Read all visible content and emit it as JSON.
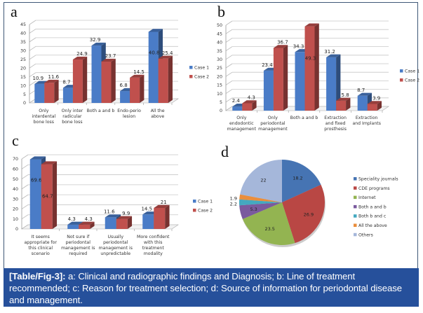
{
  "caption": {
    "label": "[Table/Fig-3]:",
    "text": " a: Clinical and radiographic findings and Diagnosis; b: Line of treatment recommended; c: Reason for treatment selection; d: Source of information for periodontal disease and management."
  },
  "colors": {
    "case1": "#4a7cc7",
    "case2": "#c0504d",
    "caption_bg": "#26509b",
    "frame": "#3f5877"
  },
  "chart_data": [
    {
      "panel": "a",
      "type": "bar",
      "title": "Clinical and radiographic findings and Diagnosis",
      "categories": [
        [
          "Only",
          "interdental",
          "bone loss"
        ],
        [
          "Only inter",
          "radicular",
          "bone loss"
        ],
        [
          "Both a and b"
        ],
        [
          "Endo-perio",
          "lesion"
        ],
        [
          "All the",
          "above"
        ]
      ],
      "series": [
        {
          "name": "Case 1",
          "values": [
            10.9,
            8.7,
            32.9,
            6.8,
            40.8
          ]
        },
        {
          "name": "Case 2",
          "values": [
            11.6,
            24.9,
            23.7,
            14.5,
            25.4
          ]
        }
      ],
      "ylim": [
        0,
        45
      ],
      "yticks": [
        0,
        5,
        10,
        15,
        20,
        25,
        30,
        35,
        40,
        45
      ],
      "grid": true,
      "legend": "right",
      "xlabel": "",
      "ylabel": ""
    },
    {
      "panel": "b",
      "type": "bar",
      "title": "Line of treatment recommended",
      "categories": [
        [
          "Only",
          "endodontic",
          "management"
        ],
        [
          "Only",
          "periodontal",
          "management"
        ],
        [
          "Both a and b"
        ],
        [
          "Extraction",
          "and fixed",
          "prosthesis"
        ],
        [
          "Extraction",
          "and Implants"
        ]
      ],
      "series": [
        {
          "name": "Case 1",
          "values": [
            2.4,
            23.4,
            34.3,
            31.2,
            8.7
          ]
        },
        {
          "name": "Case 2",
          "values": [
            4.3,
            36.7,
            49.3,
            5.8,
            3.9
          ]
        }
      ],
      "ylim": [
        0,
        50
      ],
      "yticks": [
        0,
        5,
        10,
        15,
        20,
        25,
        30,
        35,
        40,
        45,
        50
      ],
      "grid": true,
      "legend": "right",
      "xlabel": "",
      "ylabel": ""
    },
    {
      "panel": "c",
      "type": "bar",
      "title": "Reason for treatment selection",
      "categories": [
        [
          "It seems",
          "appropriate for",
          "this clinical",
          "scenario"
        ],
        [
          "Not sure if",
          "periodontal",
          "management is",
          "required"
        ],
        [
          "Usually",
          "periodontal",
          "management is",
          "unpredictable"
        ],
        [
          "More confident",
          "with this",
          "treatment",
          "modality"
        ]
      ],
      "series": [
        {
          "name": "Case 1",
          "values": [
            69.6,
            4.3,
            11.6,
            14.5
          ]
        },
        {
          "name": "Case 2",
          "values": [
            64.7,
            4.3,
            9.9,
            21
          ]
        }
      ],
      "ylim": [
        0,
        70
      ],
      "yticks": [
        0,
        10,
        20,
        30,
        40,
        50,
        60,
        70
      ],
      "grid": true,
      "legend": "right",
      "xlabel": "",
      "ylabel": ""
    },
    {
      "panel": "d",
      "type": "pie",
      "title": "Source of information for periodontal disease and management",
      "labels": [
        "Speciality journals",
        "CDE programs",
        "Internet",
        "Both a and b",
        "Both b and c",
        "All the above",
        "Others"
      ],
      "values": [
        18.2,
        26.9,
        23.5,
        5.3,
        2.2,
        1.9,
        22
      ],
      "colors": [
        "#4674b3",
        "#b94744",
        "#93b451",
        "#7a5a9e",
        "#44a9c0",
        "#ea8e3c",
        "#a5b7da"
      ],
      "legend": "right"
    }
  ]
}
